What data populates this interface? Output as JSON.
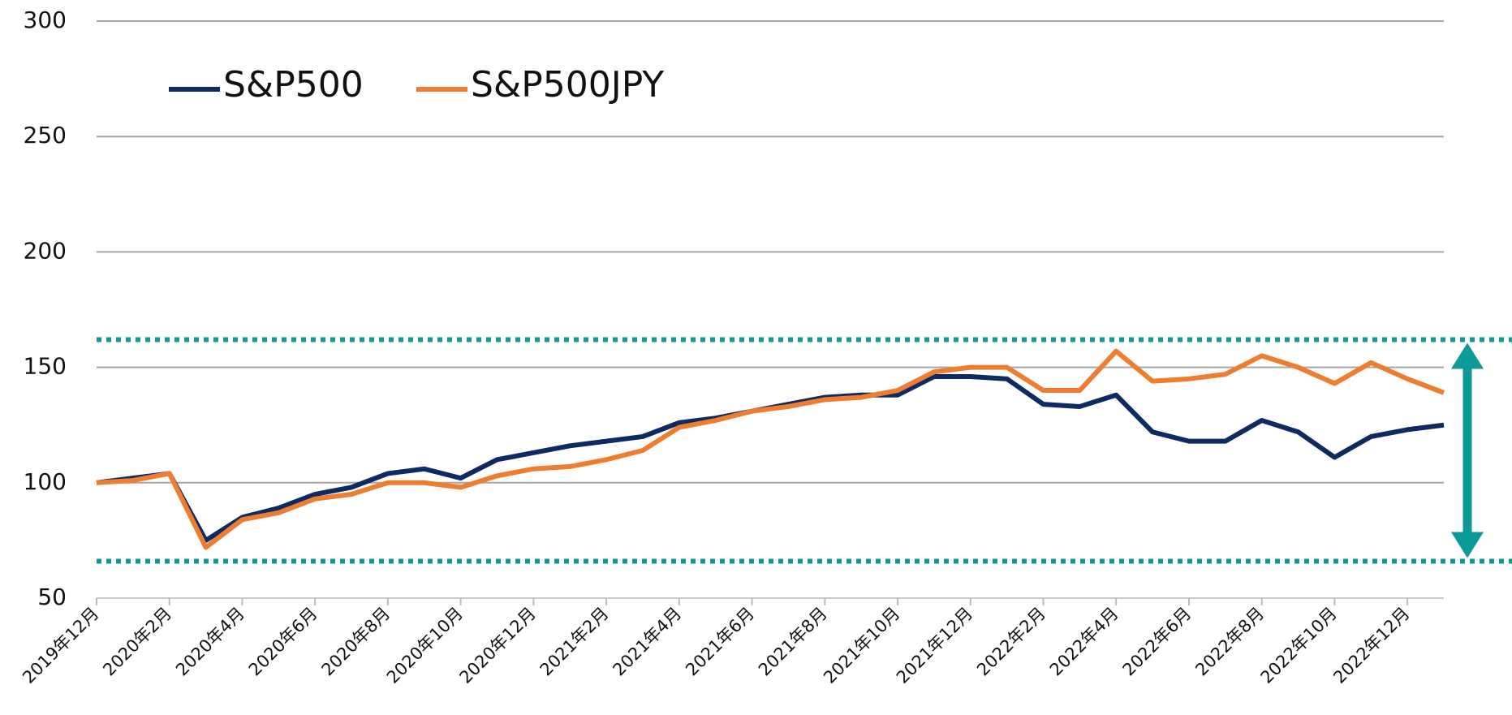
{
  "chart_data": {
    "type": "line",
    "categories": [
      "2019年12月",
      null,
      "2020年2月",
      null,
      "2020年4月",
      null,
      "2020年6月",
      null,
      "2020年8月",
      null,
      "2020年10月",
      null,
      "2020年12月",
      null,
      "2021年2月",
      null,
      "2021年4月",
      null,
      "2021年6月",
      null,
      "2021年8月",
      null,
      "2021年10月",
      null,
      "2021年12月",
      null,
      "2022年2月",
      null,
      "2022年4月",
      null,
      "2022年6月",
      null,
      "2022年8月",
      null,
      "2022年10月",
      null,
      "2022年12月",
      null
    ],
    "series": [
      {
        "name": "S&P500",
        "color": "#0d2a63",
        "values": [
          100,
          102,
          104,
          75,
          85,
          89,
          95,
          98,
          104,
          106,
          102,
          110,
          113,
          116,
          118,
          120,
          126,
          128,
          131,
          134,
          137,
          138,
          138,
          146,
          146,
          145,
          134,
          133,
          138,
          122,
          118,
          118,
          127,
          122,
          111,
          120,
          123,
          125
        ]
      },
      {
        "name": "S&P500JPY",
        "color": "#ee7d31",
        "values": [
          100,
          101,
          104,
          72,
          84,
          87,
          93,
          95,
          100,
          100,
          98,
          103,
          106,
          107,
          110,
          114,
          124,
          127,
          131,
          133,
          136,
          137,
          140,
          148,
          150,
          150,
          140,
          140,
          157,
          144,
          145,
          147,
          155,
          150,
          143,
          152,
          145,
          139
        ]
      }
    ],
    "ylim": [
      50,
      300
    ],
    "yticks": [
      50,
      100,
      150,
      200,
      250,
      300
    ],
    "grid": true,
    "reference_lines": [
      162,
      66
    ],
    "reference_color": "#0b9a96"
  }
}
